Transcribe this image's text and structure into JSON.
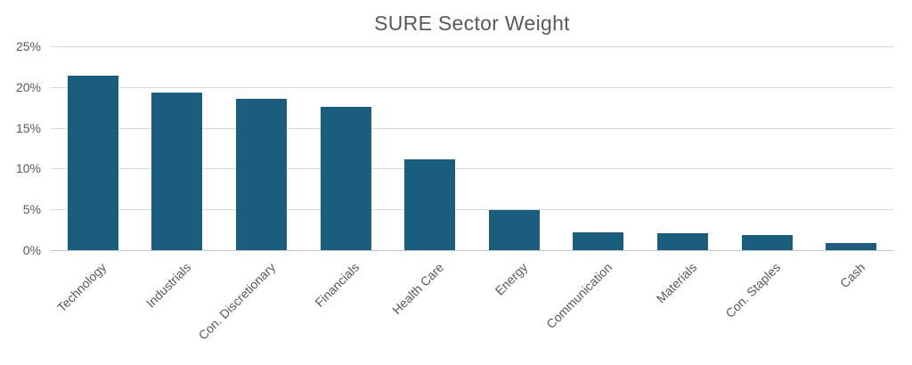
{
  "colors": {
    "bar": "#1b5d7c",
    "gridline": "#d9d9d9",
    "axis_line": "#c6c6c6",
    "text": "#595959"
  },
  "chart_data": {
    "type": "bar",
    "title": "SURE Sector Weight",
    "categories": [
      "Technology",
      "Industrials",
      "Con. Discretionary",
      "Financials",
      "Health Care",
      "Energy",
      "Communication",
      "Materials",
      "Con. Staples",
      "Cash"
    ],
    "values": [
      21.4,
      19.3,
      18.6,
      17.6,
      11.1,
      4.9,
      2.2,
      2.1,
      1.9,
      0.9
    ],
    "unit": "%",
    "xlabel": "",
    "ylabel": "",
    "ylim": [
      0,
      25
    ],
    "ytick_step": 5,
    "ytick_labels": [
      "0%",
      "5%",
      "10%",
      "15%",
      "20%",
      "25%"
    ],
    "grid": true,
    "legend": false,
    "x_label_rotation_deg": 45
  }
}
